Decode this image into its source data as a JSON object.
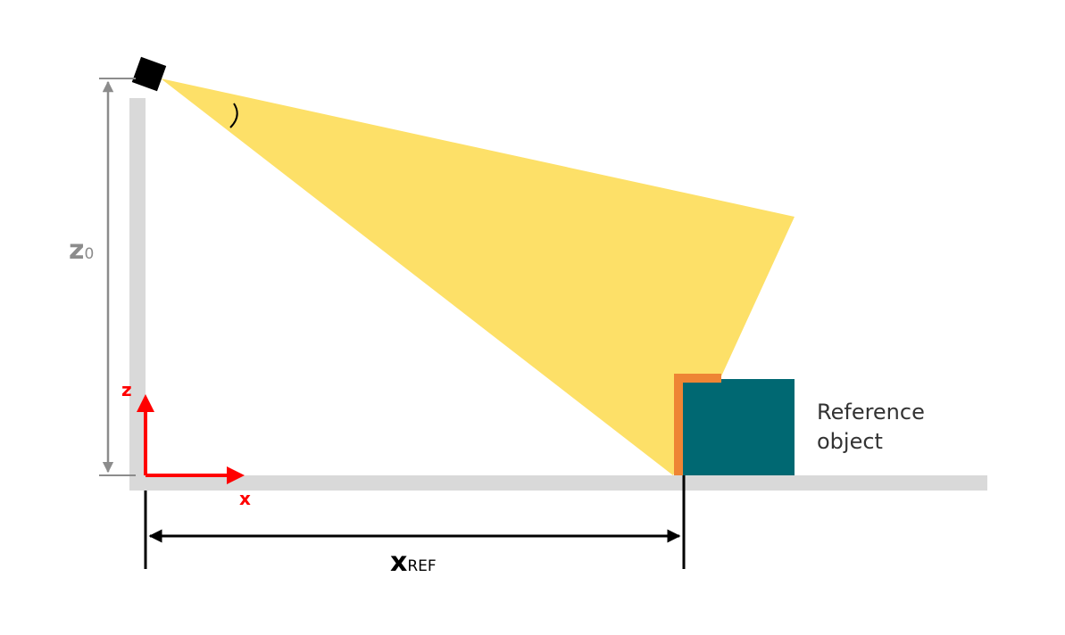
{
  "colors": {
    "background": "#ffffff",
    "structure": "#d9d9d9",
    "beam": "#fde068",
    "sensor": "#000000",
    "reference_object": "#006872",
    "reference_edge": "#ee8534",
    "axis": "#ff0000",
    "dimension_gray": "#8c8c8c",
    "dimension_black": "#000000"
  },
  "icons": {
    "sensor": "sensor-icon"
  },
  "labels": {
    "z0_main": "z",
    "z0_sub": "0",
    "axis_z": "z",
    "axis_x": "x",
    "xref_main": "x",
    "xref_sub": "REF",
    "reference_object_line1": "Reference",
    "reference_object_line2": "object"
  }
}
